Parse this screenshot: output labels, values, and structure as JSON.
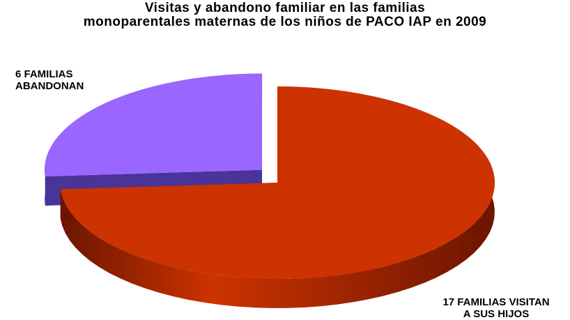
{
  "chart_data": {
    "type": "pie",
    "title": [
      "Visitas y abandono familiar en las familias",
      "monoparentales maternas de los niños de PACO IAP en 2009"
    ],
    "slices": [
      {
        "label_lines": [
          "6  FAMILIAS",
          "ABANDONAN"
        ],
        "value": 6,
        "color": "#9966ff",
        "side_color": "#4a3399",
        "exploded": true
      },
      {
        "label_lines": [
          "17 FAMILIAS VISITAN",
          "A SUS HIJOS"
        ],
        "value": 17,
        "color": "#cc3300",
        "side_color": "#6b1500",
        "exploded": false
      }
    ]
  }
}
